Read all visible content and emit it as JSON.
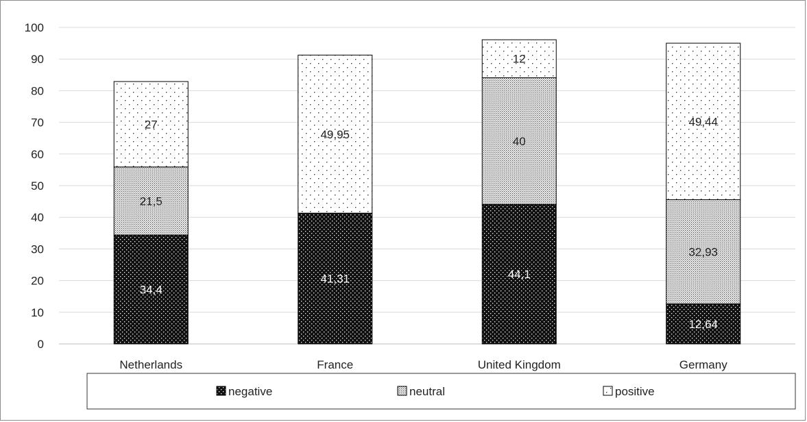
{
  "chart_data": {
    "type": "bar",
    "stacked": true,
    "categories": [
      "Netherlands",
      "France",
      "United Kingdom",
      "Germany"
    ],
    "series": [
      {
        "name": "negative",
        "values": [
          34.4,
          41.31,
          44.1,
          12.64
        ],
        "labels": [
          "34,4",
          "41,31",
          "44,1",
          "12,64"
        ],
        "pattern": "dark-dotted"
      },
      {
        "name": "neutral",
        "values": [
          21.5,
          0,
          40,
          32.93
        ],
        "labels": [
          "21,5",
          "",
          "40",
          "32,93"
        ],
        "pattern": "dense-dotted"
      },
      {
        "name": "positive",
        "values": [
          27,
          49.95,
          12,
          49.44
        ],
        "labels": [
          "27",
          "49,95",
          "12",
          "49,44"
        ],
        "pattern": "sparse-dotted"
      }
    ],
    "yticks": [
      0,
      10,
      20,
      30,
      40,
      50,
      60,
      70,
      80,
      90,
      100
    ],
    "ylim": [
      0,
      100
    ],
    "grid": true,
    "legend": "bottom"
  }
}
